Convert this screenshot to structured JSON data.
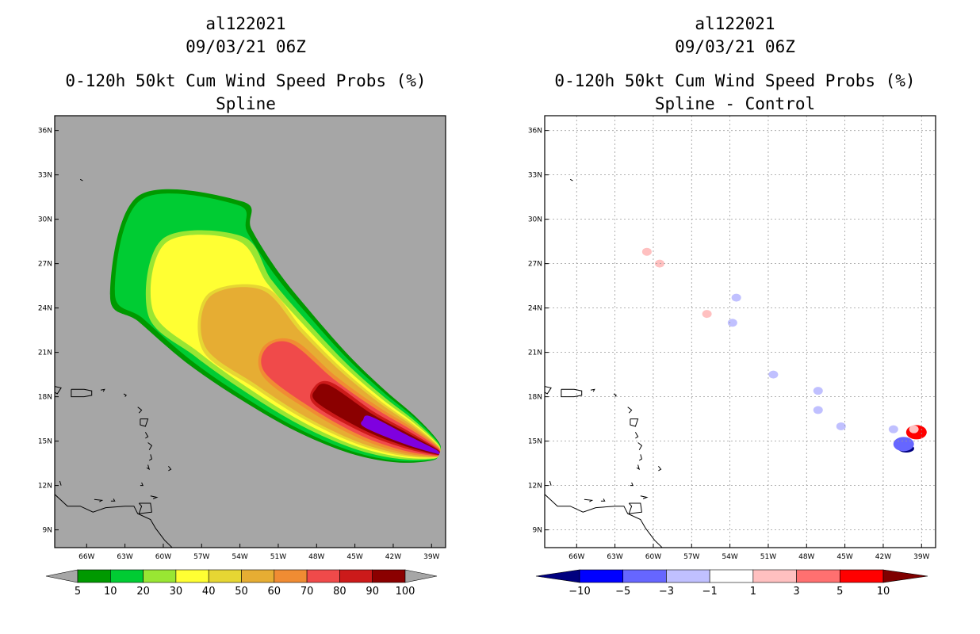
{
  "chart_data": [
    {
      "type": "heatmap",
      "panel": "left",
      "title": "al122021",
      "subtitle": "09/03/21 06Z",
      "variable": "0-120h 50kt Cum Wind Speed Probs (%)",
      "label": "Spline",
      "lon_ticks": [
        "66W",
        "63W",
        "60W",
        "57W",
        "54W",
        "51W",
        "48W",
        "45W",
        "42W",
        "39W"
      ],
      "lat_ticks": [
        "36N",
        "33N",
        "30N",
        "27N",
        "24N",
        "21N",
        "18N",
        "15N",
        "12N",
        "9N"
      ],
      "lon_range": [
        -68.5,
        -37.9
      ],
      "lat_range": [
        7.8,
        37.0
      ],
      "grid": false,
      "colorbar": {
        "labels": [
          "5",
          "10",
          "20",
          "30",
          "40",
          "50",
          "60",
          "70",
          "80",
          "90",
          "100"
        ],
        "colors": [
          "#009900",
          "#00cc33",
          "#99e633",
          "#ffff33",
          "#e6d633",
          "#e6ad33",
          "#f08c33",
          "#f04a4a",
          "#cc1a1a",
          "#8b0000",
          "#7f00e0"
        ]
      },
      "swath": {
        "track_lon": [
          -38.7,
          -41.0,
          -44.0,
          -47.5,
          -51.0,
          -54.5,
          -57.5,
          -59.0
        ],
        "track_lat": [
          14.3,
          15.1,
          16.3,
          18.2,
          20.6,
          23.3,
          26.2,
          28.0
        ],
        "half_widths_deg": [
          0.4,
          0.8,
          1.2,
          1.7,
          2.2,
          2.8,
          3.3,
          3.6,
          3.9,
          4.2,
          4.6,
          5.0,
          5.3,
          5.6
        ]
      }
    },
    {
      "type": "heatmap",
      "panel": "right",
      "title": "al122021",
      "subtitle": "09/03/21 06Z",
      "variable": "0-120h 50kt Cum Wind Speed Probs (%)",
      "label": "Spline - Control",
      "lon_ticks": [
        "66W",
        "63W",
        "60W",
        "57W",
        "54W",
        "51W",
        "48W",
        "45W",
        "42W",
        "39W"
      ],
      "lat_ticks": [
        "36N",
        "33N",
        "30N",
        "27N",
        "24N",
        "21N",
        "18N",
        "15N",
        "12N",
        "9N"
      ],
      "lon_range": [
        -68.5,
        -37.9
      ],
      "lat_range": [
        7.8,
        37.0
      ],
      "grid": true,
      "colorbar": {
        "labels": [
          "-10",
          "-5",
          "-3",
          "-1",
          "1",
          "3",
          "5",
          "10"
        ],
        "colors": [
          "#00007f",
          "#0000ff",
          "#6666ff",
          "#c0c0ff",
          "#ffffff",
          "#ffc0c0",
          "#ff7070",
          "#ff0000",
          "#7f0000"
        ]
      },
      "features": [
        {
          "lon": -40.2,
          "lat": 14.5,
          "value": -12
        },
        {
          "lon": -40.4,
          "lat": 14.8,
          "value": -4
        },
        {
          "lon": -41.2,
          "lat": 15.8,
          "value": -2
        },
        {
          "lon": -39.4,
          "lat": 15.6,
          "value": 6
        },
        {
          "lon": -39.6,
          "lat": 15.8,
          "value": 2
        },
        {
          "lon": -53.5,
          "lat": 24.7,
          "value": -2
        },
        {
          "lon": -59.5,
          "lat": 27.0,
          "value": 2
        },
        {
          "lon": -60.5,
          "lat": 27.8,
          "value": 2
        },
        {
          "lon": -55.8,
          "lat": 23.6,
          "value": 2
        },
        {
          "lon": -45.3,
          "lat": 16.0,
          "value": -2
        },
        {
          "lon": -47.1,
          "lat": 18.4,
          "value": -2
        },
        {
          "lon": -47.1,
          "lat": 17.1,
          "value": -2
        },
        {
          "lon": -53.8,
          "lat": 23.0,
          "value": -2
        },
        {
          "lon": -50.6,
          "lat": 19.5,
          "value": -2
        }
      ]
    }
  ]
}
